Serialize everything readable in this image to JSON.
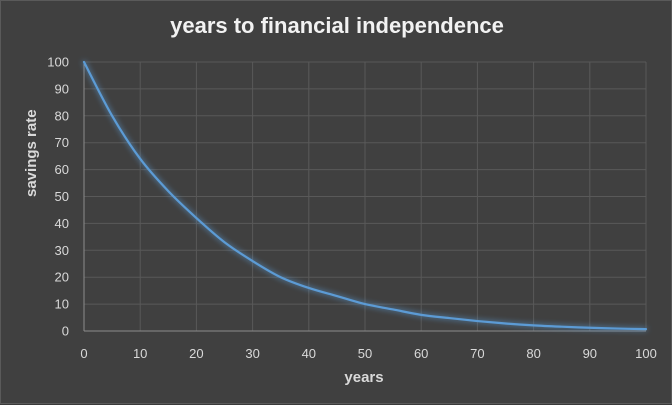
{
  "chart_data": {
    "type": "line",
    "title": "years to financial independence",
    "xlabel": "years",
    "ylabel": "savings rate",
    "xlim": [
      0,
      100
    ],
    "ylim": [
      0,
      100
    ],
    "x_ticks": [
      "0",
      "10",
      "20",
      "30",
      "40",
      "50",
      "60",
      "70",
      "80",
      "90",
      "100"
    ],
    "y_ticks": [
      "0",
      "10",
      "20",
      "30",
      "40",
      "50",
      "60",
      "70",
      "80",
      "90",
      "100"
    ],
    "grid": true,
    "legend": "none",
    "series": [
      {
        "color": "#5b9bd5",
        "x": [
          0,
          5,
          10,
          15,
          20,
          25,
          30,
          35,
          40,
          45,
          50,
          55,
          60,
          65,
          70,
          75,
          80,
          85,
          90,
          95,
          100
        ],
        "y": [
          100,
          80,
          64,
          52,
          42,
          33,
          26,
          20,
          16,
          13,
          10,
          8,
          6,
          4.8,
          3.7,
          2.8,
          2.1,
          1.6,
          1.2,
          0.9,
          0.7
        ]
      }
    ]
  },
  "colors": {
    "background": "#404040",
    "grid": "#595959",
    "axis": "#8c8c8c",
    "line": "#5b9bd5",
    "text": "#d9d9d9"
  }
}
